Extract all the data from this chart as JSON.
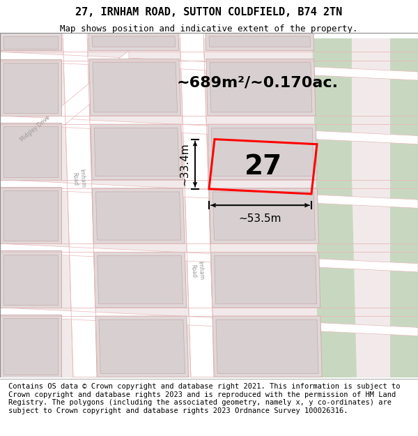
{
  "title": "27, IRNHAM ROAD, SUTTON COLDFIELD, B74 2TN",
  "subtitle": "Map shows position and indicative extent of the property.",
  "footer": "Contains OS data © Crown copyright and database right 2021. This information is subject to Crown copyright and database rights 2023 and is reproduced with the permission of HM Land Registry. The polygons (including the associated geometry, namely x, y co-ordinates) are subject to Crown copyright and database rights 2023 Ordnance Survey 100026316.",
  "area_text": "~689m²/~0.170ac.",
  "width_text": "~53.5m",
  "height_text": "~33.4m",
  "house_number": "27",
  "map_bg": "#f2eaea",
  "road_fill": "#ffffff",
  "road_edge": "#e8b8b8",
  "building_fill": "#e0d8d8",
  "building_edge": "#ccb0b0",
  "inner_building_fill": "#d8d0d0",
  "inner_building_edge": "#c8a8a8",
  "green_fill": "#c8d8c0",
  "highlight_color": "#ff0000",
  "title_fontsize": 11,
  "subtitle_fontsize": 9,
  "footer_fontsize": 7.5,
  "area_fontsize": 16,
  "dim_fontsize": 11,
  "house_fontsize": 28
}
